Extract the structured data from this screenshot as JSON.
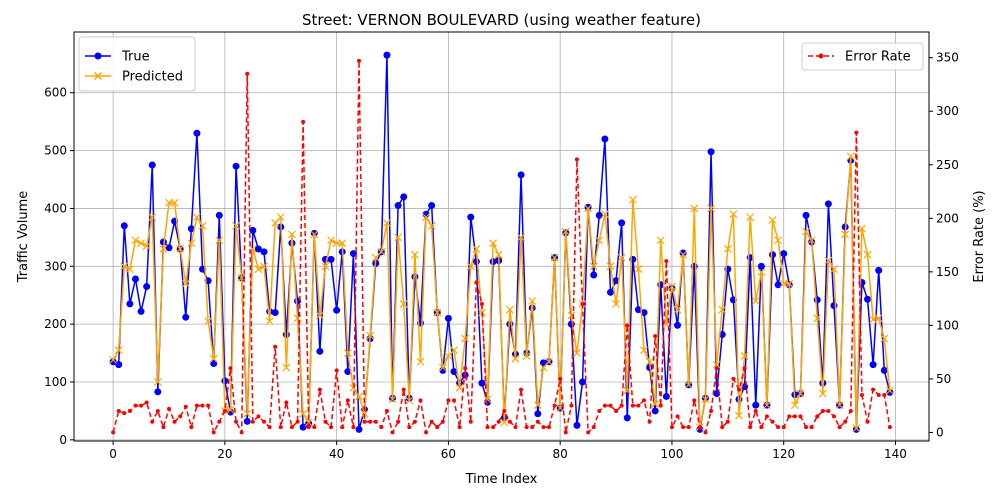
{
  "chart_data": {
    "type": "line",
    "title": "Street: VERNON BOULEVARD (using weather feature)",
    "xlabel": "Time Index",
    "ylabel": "Traffic Volume",
    "y2label": "Error Rate (%)",
    "xlim": [
      -7,
      146
    ],
    "ylim": [
      -2,
      705
    ],
    "y2lim": [
      -8,
      374
    ],
    "xticks": [
      0,
      20,
      40,
      60,
      80,
      100,
      120,
      140
    ],
    "yticks": [
      0,
      100,
      200,
      300,
      400,
      500,
      600
    ],
    "y2ticks": [
      0,
      50,
      100,
      150,
      200,
      250,
      300,
      350
    ],
    "grid": true,
    "legend_left_position": "upper-left",
    "legend_right_position": "upper-right",
    "series": [
      {
        "name": "True",
        "axis": "left",
        "color": "#0000ff",
        "marker": "circle",
        "values": [
          135,
          130,
          370,
          235,
          278,
          222,
          265,
          475,
          83,
          342,
          332,
          378,
          330,
          212,
          365,
          530,
          295,
          275,
          132,
          388,
          102,
          48,
          473,
          280,
          32,
          362,
          330,
          325,
          222,
          220,
          368,
          182,
          340,
          240,
          22,
          28,
          357,
          153,
          312,
          312,
          224,
          325,
          118,
          322,
          18,
          52,
          175,
          305,
          325,
          665,
          72,
          405,
          420,
          72,
          282,
          202,
          390,
          405,
          220,
          120,
          210,
          118,
          98,
          112,
          385,
          308,
          98,
          65,
          308,
          310,
          38,
          200,
          148,
          458,
          150,
          228,
          45,
          133,
          135,
          315,
          55,
          358,
          200,
          25,
          100,
          402,
          285,
          388,
          520,
          255,
          275,
          375,
          38,
          312,
          225,
          220,
          125,
          50,
          268,
          75,
          262,
          198,
          323,
          95,
          300,
          18,
          72,
          498,
          80,
          182,
          295,
          242,
          70,
          92,
          315,
          60,
          300,
          60,
          320,
          268,
          322,
          268,
          78,
          80,
          388,
          342,
          242,
          98,
          408,
          232,
          60,
          368,
          483,
          18,
          272,
          243,
          130,
          293,
          120,
          82
        ]
      },
      {
        "name": "Predicted",
        "axis": "left",
        "color": "#ffa500",
        "marker": "x",
        "values": [
          138,
          155,
          300,
          295,
          345,
          340,
          335,
          385,
          100,
          330,
          410,
          410,
          330,
          270,
          340,
          385,
          370,
          205,
          140,
          345,
          50,
          52,
          370,
          280,
          45,
          330,
          295,
          300,
          205,
          375,
          385,
          125,
          355,
          210,
          45,
          30,
          355,
          215,
          300,
          345,
          340,
          340,
          150,
          90,
          75,
          45,
          180,
          315,
          325,
          375,
          70,
          350,
          235,
          68,
          320,
          135,
          385,
          370,
          220,
          125,
          145,
          155,
          90,
          175,
          300,
          330,
          220,
          70,
          340,
          320,
          30,
          225,
          140,
          350,
          145,
          240,
          60,
          125,
          135,
          315,
          55,
          360,
          215,
          150,
          235,
          400,
          300,
          345,
          390,
          300,
          235,
          315,
          85,
          415,
          295,
          155,
          135,
          62,
          345,
          200,
          265,
          225,
          320,
          95,
          400,
          22,
          70,
          400,
          130,
          225,
          330,
          390,
          42,
          145,
          385,
          240,
          290,
          60,
          380,
          345,
          270,
          270,
          60,
          80,
          360,
          345,
          210,
          80,
          310,
          295,
          60,
          355,
          490,
          20,
          365,
          320,
          208,
          210,
          175,
          85
        ]
      },
      {
        "name": "Error Rate",
        "axis": "right",
        "color": "#ff0000",
        "marker": "dot",
        "dashed": true,
        "values": [
          0,
          20,
          18,
          20,
          25,
          25,
          28,
          10,
          20,
          5,
          22,
          10,
          15,
          24,
          5,
          25,
          25,
          25,
          0,
          10,
          20,
          60,
          10,
          0,
          335,
          10,
          15,
          10,
          5,
          80,
          5,
          28,
          5,
          10,
          290,
          5,
          5,
          40,
          10,
          5,
          58,
          5,
          30,
          5,
          347,
          10,
          10,
          10,
          5,
          20,
          0,
          10,
          40,
          5,
          10,
          30,
          0,
          10,
          5,
          10,
          30,
          30,
          5,
          60,
          10,
          140,
          120,
          5,
          5,
          10,
          20,
          10,
          5,
          40,
          5,
          5,
          10,
          5,
          5,
          25,
          50,
          0,
          25,
          255,
          120,
          0,
          5,
          20,
          25,
          25,
          20,
          25,
          100,
          25,
          25,
          30,
          10,
          90,
          25,
          160,
          5,
          15,
          5,
          5,
          30,
          5,
          0,
          20,
          60,
          5,
          10,
          50,
          40,
          60,
          5,
          20,
          5,
          15,
          10,
          5,
          5,
          15,
          15,
          15,
          5,
          5,
          15,
          20,
          20,
          15,
          5,
          10,
          20,
          280,
          35,
          10,
          40,
          35,
          35,
          5
        ]
      }
    ]
  }
}
